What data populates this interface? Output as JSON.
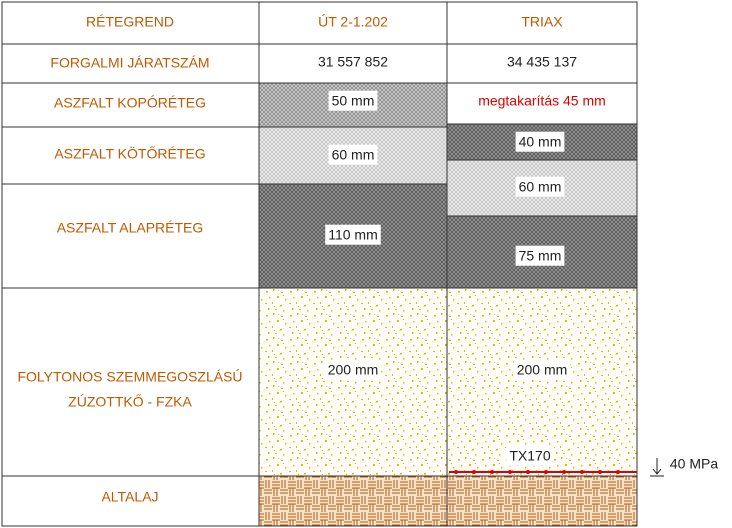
{
  "header": [
    "RÉTEGREND",
    "ÚT 2-1.202",
    "TRIAX"
  ],
  "traffic": {
    "label": "FORGALMI JÁRATSZÁM",
    "values": [
      "31 557 852",
      "34 435 137"
    ]
  },
  "layer_labels": [
    "ASZFALT KOPÓRÉTEG",
    "ASZFALT KÖTŐRÉTEG",
    "ASZFALT ALAPRÉTEG",
    [
      "FOLYTONOS SZEMMEGOSZLÁSÚ",
      "ZÚZOTTKŐ - FZKA"
    ],
    "ALTALAJ"
  ],
  "ut_layers": [
    "50 mm",
    "60 mm",
    "110 mm",
    "200 mm"
  ],
  "triax_layers": [
    "megtakarítás 45 mm",
    "40 mm",
    "60 mm",
    "75 mm",
    "200 mm"
  ],
  "geogrid": "TX170",
  "annotation": "40 MPa"
}
